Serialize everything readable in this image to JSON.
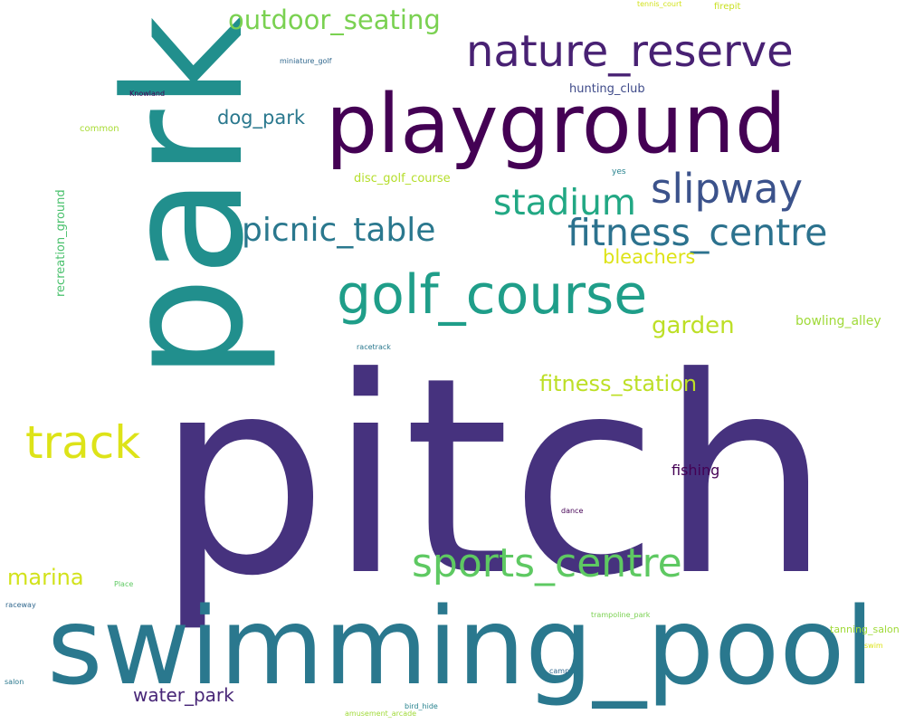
{
  "word_cloud": {
    "words": [
      {
        "text": "pitch",
        "color": "#46327e"
      },
      {
        "text": "park",
        "color": "#218f8d"
      },
      {
        "text": "swimming_pool",
        "color": "#2a788e"
      },
      {
        "text": "playground",
        "color": "#440154"
      },
      {
        "text": "golf_course",
        "color": "#1f9e89"
      },
      {
        "text": "nature_reserve",
        "color": "#482173"
      },
      {
        "text": "sports_centre",
        "color": "#5ec962"
      },
      {
        "text": "track",
        "color": "#dde318"
      },
      {
        "text": "slipway",
        "color": "#3b528b"
      },
      {
        "text": "fitness_centre",
        "color": "#2c728e"
      },
      {
        "text": "stadium",
        "color": "#22a884"
      },
      {
        "text": "picnic_table",
        "color": "#2a788e"
      },
      {
        "text": "outdoor_seating",
        "color": "#7ad151"
      },
      {
        "text": "marina",
        "color": "#d2e21b"
      },
      {
        "text": "water_park",
        "color": "#482677"
      },
      {
        "text": "fitness_station",
        "color": "#bddf26"
      },
      {
        "text": "garden",
        "color": "#bddf26"
      },
      {
        "text": "bleachers",
        "color": "#dde318"
      },
      {
        "text": "dog_park",
        "color": "#2a788e"
      },
      {
        "text": "recreation_ground",
        "color": "#4ac16d"
      },
      {
        "text": "fishing",
        "color": "#440154"
      },
      {
        "text": "bowling_alley",
        "color": "#a0da39"
      },
      {
        "text": "disc_golf_course",
        "color": "#b5de2b"
      },
      {
        "text": "hunting_club",
        "color": "#3e4a89"
      },
      {
        "text": "tanning_salon",
        "color": "#a0da39"
      },
      {
        "text": "common",
        "color": "#a8db34"
      },
      {
        "text": "miniature_golf",
        "color": "#31688e"
      },
      {
        "text": "Knowland",
        "color": "#440154"
      },
      {
        "text": "tennis_court",
        "color": "#d2e21b"
      },
      {
        "text": "firepit",
        "color": "#c8e020"
      },
      {
        "text": "yes",
        "color": "#26828e"
      },
      {
        "text": "racetrack",
        "color": "#2a788e"
      },
      {
        "text": "dance",
        "color": "#440154"
      },
      {
        "text": "Place",
        "color": "#5ec962"
      },
      {
        "text": "raceway",
        "color": "#31688e"
      },
      {
        "text": "trampoline_park",
        "color": "#7ad151"
      },
      {
        "text": "swim",
        "color": "#dde318"
      },
      {
        "text": "camp",
        "color": "#31688e"
      },
      {
        "text": "salon",
        "color": "#2a788e"
      },
      {
        "text": "bird_hide",
        "color": "#26828e"
      },
      {
        "text": "amusement_arcade",
        "color": "#a0da39"
      }
    ]
  }
}
